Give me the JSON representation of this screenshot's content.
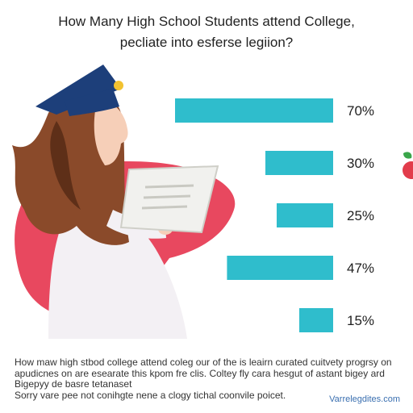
{
  "chart_data": {
    "type": "bar",
    "orientation": "horizontal",
    "title": "How Many High School Students attend College,",
    "subtitle": "pecliate into esferse legiion?",
    "categories": [
      "",
      "",
      "",
      "",
      ""
    ],
    "values": [
      70,
      30,
      25,
      47,
      15
    ],
    "value_labels": [
      "70%",
      "30%",
      "25%",
      "47%",
      "15%"
    ],
    "unit": "%",
    "xlim": [
      0,
      100
    ],
    "grid": false,
    "legend": "none",
    "bar_color": "#2fbdcc",
    "label_color": "#1f1f1f"
  },
  "footnote": {
    "lines": [
      "How maw high stbod college attend coleg our of the is leairn curated cuitvety progrsy on",
      "apudicnes on are esearate this kpom fre clis. Coltey fly cara hesgut of astant bigey ard",
      "Bigepyy de basre tetanaset",
      "Sorry vare pee not conihgte nene a clogy tichal coonvile poicet."
    ]
  },
  "credit": "Varrelegdites.com",
  "illustration": {
    "subject": "student with graduation cap using laptop",
    "colors": {
      "cap": "#1d3f7a",
      "tassel": "#f2c230",
      "hair": "#8a4a2a",
      "hair_dark": "#5e2f18",
      "skin": "#f6cfb8",
      "backdrop": "#e8485f",
      "shirt": "#f3f0f4",
      "laptop": "#f1f1ee",
      "apple": "#e23c4b",
      "leaf": "#3aa64a"
    }
  }
}
